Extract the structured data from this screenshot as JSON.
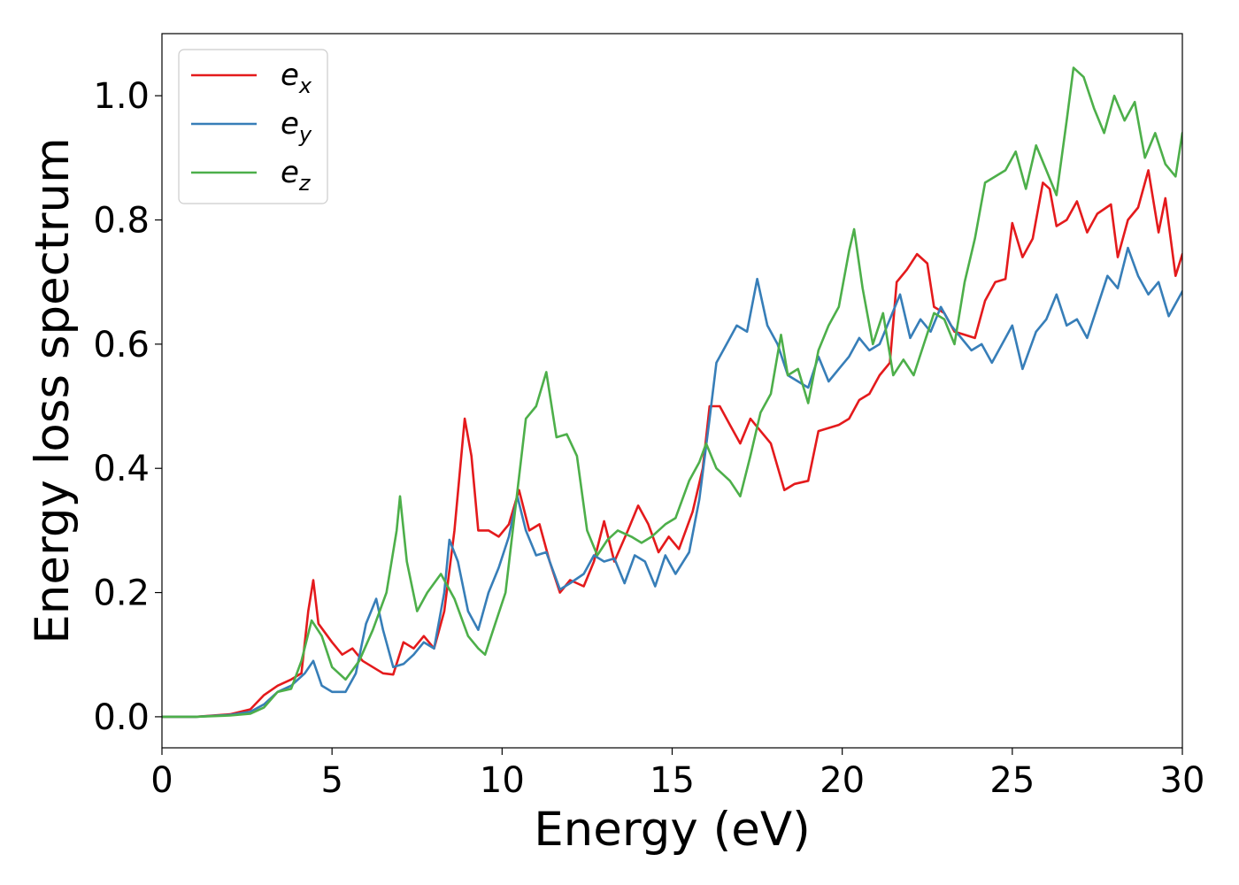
{
  "chart_data": {
    "type": "line",
    "xlabel": "Energy (eV)",
    "ylabel": "Energy loss spectrum",
    "xlim": [
      0,
      30
    ],
    "ylim": [
      -0.05,
      1.1
    ],
    "xticks": [
      "0",
      "5",
      "10",
      "15",
      "20",
      "25",
      "30"
    ],
    "yticks": [
      "0.0",
      "0.2",
      "0.4",
      "0.6",
      "0.8",
      "1.0"
    ],
    "grid": false,
    "legend_position": "top-left",
    "colors": {
      "ex": "#e41a1c",
      "ey": "#377eb8",
      "ez": "#4daf4a"
    },
    "series": [
      {
        "key": "ex",
        "name": "e",
        "subscript": "x",
        "points": [
          [
            0,
            0.0
          ],
          [
            1,
            0.0
          ],
          [
            2,
            0.004
          ],
          [
            2.6,
            0.012
          ],
          [
            3.0,
            0.035
          ],
          [
            3.4,
            0.05
          ],
          [
            3.8,
            0.06
          ],
          [
            4.1,
            0.07
          ],
          [
            4.3,
            0.17
          ],
          [
            4.45,
            0.22
          ],
          [
            4.6,
            0.15
          ],
          [
            5.0,
            0.12
          ],
          [
            5.3,
            0.1
          ],
          [
            5.6,
            0.11
          ],
          [
            5.9,
            0.09
          ],
          [
            6.2,
            0.08
          ],
          [
            6.5,
            0.07
          ],
          [
            6.8,
            0.068
          ],
          [
            7.1,
            0.12
          ],
          [
            7.4,
            0.11
          ],
          [
            7.7,
            0.13
          ],
          [
            8.0,
            0.11
          ],
          [
            8.3,
            0.17
          ],
          [
            8.6,
            0.3
          ],
          [
            8.9,
            0.48
          ],
          [
            9.1,
            0.42
          ],
          [
            9.3,
            0.3
          ],
          [
            9.6,
            0.3
          ],
          [
            9.9,
            0.29
          ],
          [
            10.2,
            0.31
          ],
          [
            10.5,
            0.365
          ],
          [
            10.8,
            0.3
          ],
          [
            11.1,
            0.31
          ],
          [
            11.4,
            0.25
          ],
          [
            11.7,
            0.2
          ],
          [
            12.0,
            0.22
          ],
          [
            12.4,
            0.21
          ],
          [
            12.7,
            0.25
          ],
          [
            13.0,
            0.315
          ],
          [
            13.3,
            0.25
          ],
          [
            13.7,
            0.3
          ],
          [
            14.0,
            0.34
          ],
          [
            14.3,
            0.31
          ],
          [
            14.6,
            0.265
          ],
          [
            14.9,
            0.29
          ],
          [
            15.2,
            0.27
          ],
          [
            15.6,
            0.33
          ],
          [
            15.9,
            0.4
          ],
          [
            16.1,
            0.5
          ],
          [
            16.4,
            0.5
          ],
          [
            16.7,
            0.47
          ],
          [
            17.0,
            0.44
          ],
          [
            17.3,
            0.48
          ],
          [
            17.6,
            0.46
          ],
          [
            17.9,
            0.44
          ],
          [
            18.3,
            0.365
          ],
          [
            18.6,
            0.375
          ],
          [
            19.0,
            0.38
          ],
          [
            19.3,
            0.46
          ],
          [
            19.6,
            0.465
          ],
          [
            19.9,
            0.47
          ],
          [
            20.2,
            0.48
          ],
          [
            20.5,
            0.51
          ],
          [
            20.8,
            0.52
          ],
          [
            21.1,
            0.55
          ],
          [
            21.4,
            0.57
          ],
          [
            21.6,
            0.7
          ],
          [
            21.9,
            0.72
          ],
          [
            22.2,
            0.745
          ],
          [
            22.5,
            0.73
          ],
          [
            22.7,
            0.66
          ],
          [
            23.0,
            0.65
          ],
          [
            23.3,
            0.62
          ],
          [
            23.6,
            0.615
          ],
          [
            23.9,
            0.61
          ],
          [
            24.2,
            0.67
          ],
          [
            24.5,
            0.7
          ],
          [
            24.8,
            0.705
          ],
          [
            25.0,
            0.795
          ],
          [
            25.3,
            0.74
          ],
          [
            25.6,
            0.77
          ],
          [
            25.9,
            0.86
          ],
          [
            26.1,
            0.85
          ],
          [
            26.3,
            0.79
          ],
          [
            26.6,
            0.8
          ],
          [
            26.9,
            0.83
          ],
          [
            27.2,
            0.78
          ],
          [
            27.5,
            0.81
          ],
          [
            27.9,
            0.825
          ],
          [
            28.1,
            0.74
          ],
          [
            28.4,
            0.8
          ],
          [
            28.7,
            0.82
          ],
          [
            29.0,
            0.88
          ],
          [
            29.3,
            0.78
          ],
          [
            29.5,
            0.835
          ],
          [
            29.8,
            0.71
          ],
          [
            30.0,
            0.745
          ]
        ]
      },
      {
        "key": "ey",
        "name": "e",
        "subscript": "y",
        "points": [
          [
            0,
            0.0
          ],
          [
            1,
            0.0
          ],
          [
            2,
            0.003
          ],
          [
            2.6,
            0.008
          ],
          [
            3.0,
            0.02
          ],
          [
            3.4,
            0.04
          ],
          [
            3.8,
            0.05
          ],
          [
            4.2,
            0.07
          ],
          [
            4.45,
            0.09
          ],
          [
            4.7,
            0.05
          ],
          [
            5.0,
            0.04
          ],
          [
            5.4,
            0.04
          ],
          [
            5.7,
            0.07
          ],
          [
            6.0,
            0.15
          ],
          [
            6.3,
            0.19
          ],
          [
            6.5,
            0.14
          ],
          [
            6.8,
            0.08
          ],
          [
            7.1,
            0.085
          ],
          [
            7.4,
            0.1
          ],
          [
            7.7,
            0.12
          ],
          [
            8.0,
            0.11
          ],
          [
            8.3,
            0.2
          ],
          [
            8.45,
            0.285
          ],
          [
            8.7,
            0.25
          ],
          [
            9.0,
            0.17
          ],
          [
            9.3,
            0.14
          ],
          [
            9.6,
            0.2
          ],
          [
            9.9,
            0.24
          ],
          [
            10.2,
            0.29
          ],
          [
            10.45,
            0.355
          ],
          [
            10.7,
            0.3
          ],
          [
            11.0,
            0.26
          ],
          [
            11.3,
            0.265
          ],
          [
            11.7,
            0.205
          ],
          [
            12.0,
            0.215
          ],
          [
            12.4,
            0.23
          ],
          [
            12.7,
            0.26
          ],
          [
            13.0,
            0.25
          ],
          [
            13.3,
            0.255
          ],
          [
            13.6,
            0.215
          ],
          [
            13.9,
            0.26
          ],
          [
            14.2,
            0.25
          ],
          [
            14.5,
            0.21
          ],
          [
            14.8,
            0.26
          ],
          [
            15.1,
            0.23
          ],
          [
            15.5,
            0.265
          ],
          [
            15.8,
            0.35
          ],
          [
            16.1,
            0.48
          ],
          [
            16.3,
            0.57
          ],
          [
            16.6,
            0.6
          ],
          [
            16.9,
            0.63
          ],
          [
            17.2,
            0.62
          ],
          [
            17.5,
            0.705
          ],
          [
            17.8,
            0.63
          ],
          [
            18.1,
            0.6
          ],
          [
            18.4,
            0.55
          ],
          [
            18.7,
            0.54
          ],
          [
            19.0,
            0.53
          ],
          [
            19.3,
            0.58
          ],
          [
            19.6,
            0.54
          ],
          [
            19.9,
            0.56
          ],
          [
            20.2,
            0.58
          ],
          [
            20.5,
            0.61
          ],
          [
            20.8,
            0.59
          ],
          [
            21.1,
            0.6
          ],
          [
            21.4,
            0.64
          ],
          [
            21.7,
            0.68
          ],
          [
            22.0,
            0.61
          ],
          [
            22.3,
            0.64
          ],
          [
            22.6,
            0.62
          ],
          [
            22.9,
            0.66
          ],
          [
            23.2,
            0.63
          ],
          [
            23.5,
            0.61
          ],
          [
            23.8,
            0.59
          ],
          [
            24.1,
            0.6
          ],
          [
            24.4,
            0.57
          ],
          [
            24.7,
            0.6
          ],
          [
            25.0,
            0.63
          ],
          [
            25.3,
            0.56
          ],
          [
            25.7,
            0.62
          ],
          [
            26.0,
            0.64
          ],
          [
            26.3,
            0.68
          ],
          [
            26.6,
            0.63
          ],
          [
            26.9,
            0.64
          ],
          [
            27.2,
            0.61
          ],
          [
            27.5,
            0.66
          ],
          [
            27.8,
            0.71
          ],
          [
            28.1,
            0.69
          ],
          [
            28.4,
            0.755
          ],
          [
            28.7,
            0.71
          ],
          [
            29.0,
            0.68
          ],
          [
            29.3,
            0.7
          ],
          [
            29.6,
            0.645
          ],
          [
            30.0,
            0.685
          ]
        ]
      },
      {
        "key": "ez",
        "name": "e",
        "subscript": "z",
        "points": [
          [
            0,
            0.0
          ],
          [
            1,
            0.0
          ],
          [
            2,
            0.002
          ],
          [
            2.6,
            0.005
          ],
          [
            3.0,
            0.015
          ],
          [
            3.4,
            0.04
          ],
          [
            3.8,
            0.045
          ],
          [
            4.1,
            0.09
          ],
          [
            4.4,
            0.155
          ],
          [
            4.7,
            0.13
          ],
          [
            5.0,
            0.08
          ],
          [
            5.4,
            0.06
          ],
          [
            5.8,
            0.09
          ],
          [
            6.2,
            0.14
          ],
          [
            6.6,
            0.2
          ],
          [
            6.9,
            0.3
          ],
          [
            7.0,
            0.355
          ],
          [
            7.2,
            0.25
          ],
          [
            7.5,
            0.17
          ],
          [
            7.8,
            0.2
          ],
          [
            8.2,
            0.23
          ],
          [
            8.6,
            0.19
          ],
          [
            9.0,
            0.13
          ],
          [
            9.3,
            0.11
          ],
          [
            9.5,
            0.1
          ],
          [
            9.8,
            0.15
          ],
          [
            10.1,
            0.2
          ],
          [
            10.4,
            0.34
          ],
          [
            10.7,
            0.48
          ],
          [
            11.0,
            0.5
          ],
          [
            11.3,
            0.555
          ],
          [
            11.6,
            0.45
          ],
          [
            11.9,
            0.455
          ],
          [
            12.2,
            0.42
          ],
          [
            12.5,
            0.3
          ],
          [
            12.8,
            0.26
          ],
          [
            13.1,
            0.285
          ],
          [
            13.4,
            0.3
          ],
          [
            13.8,
            0.29
          ],
          [
            14.1,
            0.28
          ],
          [
            14.4,
            0.29
          ],
          [
            14.8,
            0.31
          ],
          [
            15.1,
            0.32
          ],
          [
            15.5,
            0.38
          ],
          [
            15.8,
            0.41
          ],
          [
            16.0,
            0.44
          ],
          [
            16.3,
            0.4
          ],
          [
            16.7,
            0.38
          ],
          [
            17.0,
            0.355
          ],
          [
            17.3,
            0.42
          ],
          [
            17.6,
            0.49
          ],
          [
            17.9,
            0.52
          ],
          [
            18.2,
            0.615
          ],
          [
            18.4,
            0.55
          ],
          [
            18.7,
            0.56
          ],
          [
            19.0,
            0.505
          ],
          [
            19.3,
            0.59
          ],
          [
            19.6,
            0.63
          ],
          [
            19.9,
            0.66
          ],
          [
            20.2,
            0.75
          ],
          [
            20.35,
            0.785
          ],
          [
            20.6,
            0.69
          ],
          [
            20.9,
            0.6
          ],
          [
            21.2,
            0.65
          ],
          [
            21.5,
            0.55
          ],
          [
            21.8,
            0.575
          ],
          [
            22.1,
            0.55
          ],
          [
            22.4,
            0.6
          ],
          [
            22.7,
            0.65
          ],
          [
            23.0,
            0.64
          ],
          [
            23.3,
            0.6
          ],
          [
            23.6,
            0.7
          ],
          [
            23.9,
            0.77
          ],
          [
            24.2,
            0.86
          ],
          [
            24.5,
            0.87
          ],
          [
            24.8,
            0.88
          ],
          [
            25.1,
            0.91
          ],
          [
            25.4,
            0.85
          ],
          [
            25.7,
            0.92
          ],
          [
            26.0,
            0.88
          ],
          [
            26.3,
            0.84
          ],
          [
            26.6,
            0.96
          ],
          [
            26.8,
            1.045
          ],
          [
            27.1,
            1.03
          ],
          [
            27.4,
            0.98
          ],
          [
            27.7,
            0.94
          ],
          [
            28.0,
            1.0
          ],
          [
            28.3,
            0.96
          ],
          [
            28.6,
            0.99
          ],
          [
            28.9,
            0.9
          ],
          [
            29.2,
            0.94
          ],
          [
            29.5,
            0.89
          ],
          [
            29.8,
            0.87
          ],
          [
            30.0,
            0.94
          ]
        ]
      }
    ]
  }
}
